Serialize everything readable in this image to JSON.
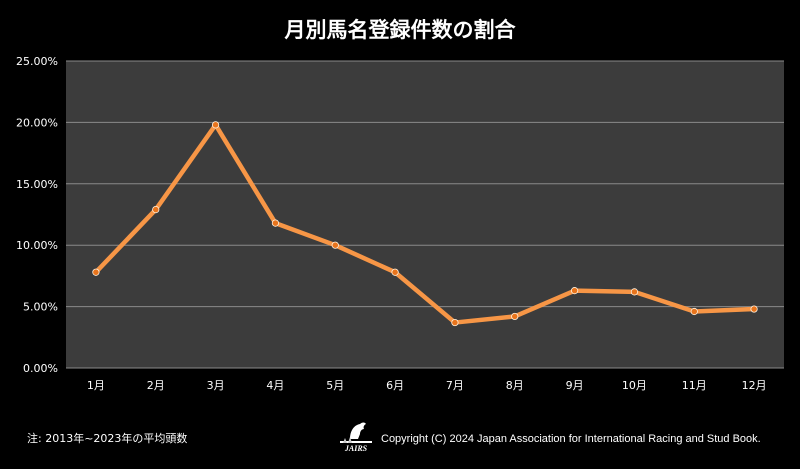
{
  "chart_data": {
    "type": "line",
    "title": "月別馬名登録件数の割合",
    "categories": [
      "1月",
      "2月",
      "3月",
      "4月",
      "5月",
      "6月",
      "7月",
      "8月",
      "9月",
      "10月",
      "11月",
      "12月"
    ],
    "series": [
      {
        "values": [
          7.8,
          12.9,
          19.8,
          11.8,
          10.0,
          7.8,
          3.7,
          4.2,
          6.3,
          6.2,
          4.6,
          4.8
        ]
      }
    ],
    "ylim": [
      0,
      25
    ],
    "yticks": [
      0,
      5,
      10,
      15,
      20,
      25
    ],
    "ytick_labels": [
      "0.00%",
      "5.00%",
      "10.00%",
      "15.00%",
      "20.00%",
      "25.00%"
    ],
    "grid": true,
    "legend": "none",
    "colors": {
      "background": "#000000",
      "plot_area": "#3c3c3c",
      "gridline": "#8a8a8a",
      "line": "#f79646",
      "marker": "#e8741c"
    }
  },
  "footer": {
    "note": "注: 2013年~2023年の平均頭数",
    "copyright": "Copyright (C) 2024 Japan Association for International Racing and Stud Book.",
    "logo_text": "JAIRS"
  }
}
